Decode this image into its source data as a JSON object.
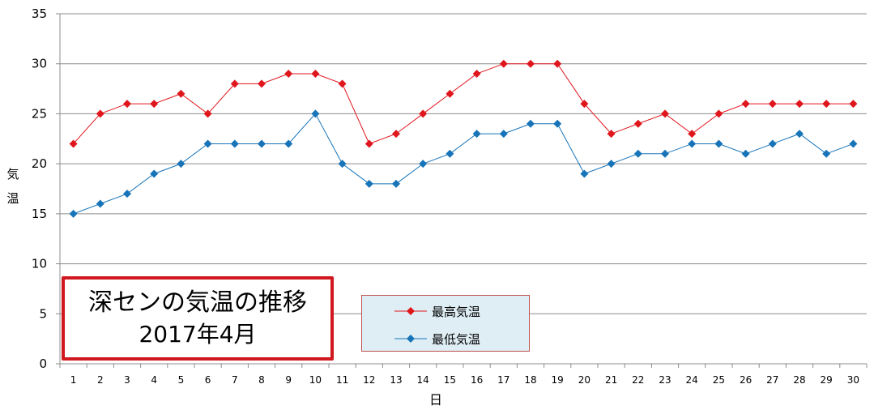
{
  "chart_data": {
    "type": "line",
    "title": "深センの気温の推移",
    "subtitle": "2017年4月",
    "xlabel": "日",
    "ylabel": "気温",
    "ylim": [
      0,
      35
    ],
    "yticks": [
      0,
      5,
      10,
      15,
      20,
      25,
      30,
      35
    ],
    "grid": true,
    "legend_position": "bottom-center",
    "categories": [
      1,
      2,
      3,
      4,
      5,
      6,
      7,
      8,
      9,
      10,
      11,
      12,
      13,
      14,
      15,
      16,
      17,
      18,
      19,
      20,
      21,
      22,
      23,
      24,
      25,
      26,
      27,
      28,
      29,
      30
    ],
    "series": [
      {
        "name": "最高気温",
        "color": "#e0161d",
        "values": [
          22,
          25,
          26,
          26,
          27,
          25,
          28,
          28,
          29,
          29,
          28,
          22,
          23,
          25,
          27,
          29,
          30,
          30,
          30,
          26,
          23,
          24,
          25,
          23,
          25,
          26,
          26,
          26,
          26,
          26
        ]
      },
      {
        "name": "最低気温",
        "color": "#1874b8",
        "values": [
          15,
          16,
          17,
          19,
          20,
          22,
          22,
          22,
          22,
          25,
          20,
          18,
          18,
          20,
          21,
          23,
          23,
          24,
          24,
          19,
          20,
          21,
          21,
          22,
          22,
          21,
          22,
          23,
          21,
          22
        ]
      }
    ]
  }
}
